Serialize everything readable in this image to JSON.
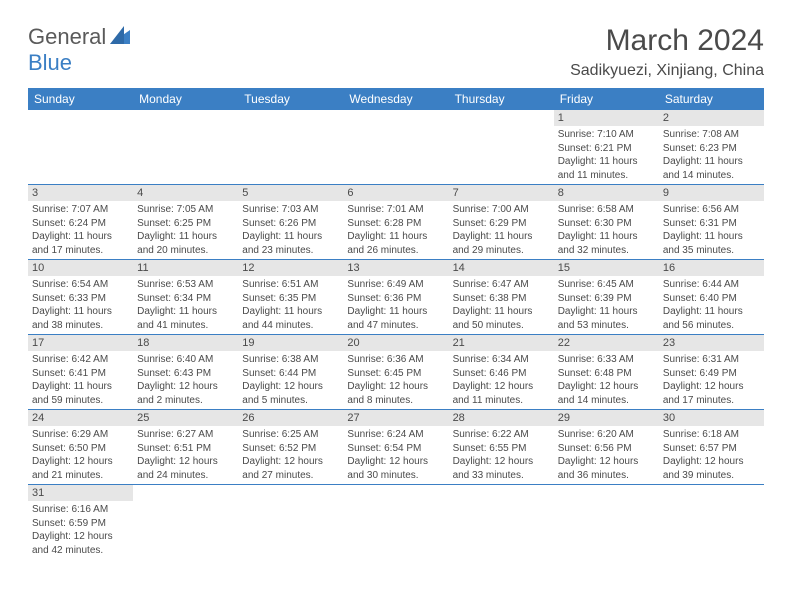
{
  "logo": {
    "text1": "General",
    "text2": "Blue"
  },
  "title": "March 2024",
  "location": "Sadikyuezi, Xinjiang, China",
  "colors": {
    "header_bg": "#3b7fc4",
    "daynum_bg": "#e6e6e6",
    "text": "#4a4a4a",
    "row_border": "#3b7fc4"
  },
  "font": {
    "title_size": 30,
    "location_size": 16,
    "header_size": 12,
    "body_size": 10
  },
  "weekdays": [
    "Sunday",
    "Monday",
    "Tuesday",
    "Wednesday",
    "Thursday",
    "Friday",
    "Saturday"
  ],
  "weeks": [
    [
      null,
      null,
      null,
      null,
      null,
      {
        "n": "1",
        "sr": "Sunrise: 7:10 AM",
        "ss": "Sunset: 6:21 PM",
        "d1": "Daylight: 11 hours",
        "d2": "and 11 minutes."
      },
      {
        "n": "2",
        "sr": "Sunrise: 7:08 AM",
        "ss": "Sunset: 6:23 PM",
        "d1": "Daylight: 11 hours",
        "d2": "and 14 minutes."
      }
    ],
    [
      {
        "n": "3",
        "sr": "Sunrise: 7:07 AM",
        "ss": "Sunset: 6:24 PM",
        "d1": "Daylight: 11 hours",
        "d2": "and 17 minutes."
      },
      {
        "n": "4",
        "sr": "Sunrise: 7:05 AM",
        "ss": "Sunset: 6:25 PM",
        "d1": "Daylight: 11 hours",
        "d2": "and 20 minutes."
      },
      {
        "n": "5",
        "sr": "Sunrise: 7:03 AM",
        "ss": "Sunset: 6:26 PM",
        "d1": "Daylight: 11 hours",
        "d2": "and 23 minutes."
      },
      {
        "n": "6",
        "sr": "Sunrise: 7:01 AM",
        "ss": "Sunset: 6:28 PM",
        "d1": "Daylight: 11 hours",
        "d2": "and 26 minutes."
      },
      {
        "n": "7",
        "sr": "Sunrise: 7:00 AM",
        "ss": "Sunset: 6:29 PM",
        "d1": "Daylight: 11 hours",
        "d2": "and 29 minutes."
      },
      {
        "n": "8",
        "sr": "Sunrise: 6:58 AM",
        "ss": "Sunset: 6:30 PM",
        "d1": "Daylight: 11 hours",
        "d2": "and 32 minutes."
      },
      {
        "n": "9",
        "sr": "Sunrise: 6:56 AM",
        "ss": "Sunset: 6:31 PM",
        "d1": "Daylight: 11 hours",
        "d2": "and 35 minutes."
      }
    ],
    [
      {
        "n": "10",
        "sr": "Sunrise: 6:54 AM",
        "ss": "Sunset: 6:33 PM",
        "d1": "Daylight: 11 hours",
        "d2": "and 38 minutes."
      },
      {
        "n": "11",
        "sr": "Sunrise: 6:53 AM",
        "ss": "Sunset: 6:34 PM",
        "d1": "Daylight: 11 hours",
        "d2": "and 41 minutes."
      },
      {
        "n": "12",
        "sr": "Sunrise: 6:51 AM",
        "ss": "Sunset: 6:35 PM",
        "d1": "Daylight: 11 hours",
        "d2": "and 44 minutes."
      },
      {
        "n": "13",
        "sr": "Sunrise: 6:49 AM",
        "ss": "Sunset: 6:36 PM",
        "d1": "Daylight: 11 hours",
        "d2": "and 47 minutes."
      },
      {
        "n": "14",
        "sr": "Sunrise: 6:47 AM",
        "ss": "Sunset: 6:38 PM",
        "d1": "Daylight: 11 hours",
        "d2": "and 50 minutes."
      },
      {
        "n": "15",
        "sr": "Sunrise: 6:45 AM",
        "ss": "Sunset: 6:39 PM",
        "d1": "Daylight: 11 hours",
        "d2": "and 53 minutes."
      },
      {
        "n": "16",
        "sr": "Sunrise: 6:44 AM",
        "ss": "Sunset: 6:40 PM",
        "d1": "Daylight: 11 hours",
        "d2": "and 56 minutes."
      }
    ],
    [
      {
        "n": "17",
        "sr": "Sunrise: 6:42 AM",
        "ss": "Sunset: 6:41 PM",
        "d1": "Daylight: 11 hours",
        "d2": "and 59 minutes."
      },
      {
        "n": "18",
        "sr": "Sunrise: 6:40 AM",
        "ss": "Sunset: 6:43 PM",
        "d1": "Daylight: 12 hours",
        "d2": "and 2 minutes."
      },
      {
        "n": "19",
        "sr": "Sunrise: 6:38 AM",
        "ss": "Sunset: 6:44 PM",
        "d1": "Daylight: 12 hours",
        "d2": "and 5 minutes."
      },
      {
        "n": "20",
        "sr": "Sunrise: 6:36 AM",
        "ss": "Sunset: 6:45 PM",
        "d1": "Daylight: 12 hours",
        "d2": "and 8 minutes."
      },
      {
        "n": "21",
        "sr": "Sunrise: 6:34 AM",
        "ss": "Sunset: 6:46 PM",
        "d1": "Daylight: 12 hours",
        "d2": "and 11 minutes."
      },
      {
        "n": "22",
        "sr": "Sunrise: 6:33 AM",
        "ss": "Sunset: 6:48 PM",
        "d1": "Daylight: 12 hours",
        "d2": "and 14 minutes."
      },
      {
        "n": "23",
        "sr": "Sunrise: 6:31 AM",
        "ss": "Sunset: 6:49 PM",
        "d1": "Daylight: 12 hours",
        "d2": "and 17 minutes."
      }
    ],
    [
      {
        "n": "24",
        "sr": "Sunrise: 6:29 AM",
        "ss": "Sunset: 6:50 PM",
        "d1": "Daylight: 12 hours",
        "d2": "and 21 minutes."
      },
      {
        "n": "25",
        "sr": "Sunrise: 6:27 AM",
        "ss": "Sunset: 6:51 PM",
        "d1": "Daylight: 12 hours",
        "d2": "and 24 minutes."
      },
      {
        "n": "26",
        "sr": "Sunrise: 6:25 AM",
        "ss": "Sunset: 6:52 PM",
        "d1": "Daylight: 12 hours",
        "d2": "and 27 minutes."
      },
      {
        "n": "27",
        "sr": "Sunrise: 6:24 AM",
        "ss": "Sunset: 6:54 PM",
        "d1": "Daylight: 12 hours",
        "d2": "and 30 minutes."
      },
      {
        "n": "28",
        "sr": "Sunrise: 6:22 AM",
        "ss": "Sunset: 6:55 PM",
        "d1": "Daylight: 12 hours",
        "d2": "and 33 minutes."
      },
      {
        "n": "29",
        "sr": "Sunrise: 6:20 AM",
        "ss": "Sunset: 6:56 PM",
        "d1": "Daylight: 12 hours",
        "d2": "and 36 minutes."
      },
      {
        "n": "30",
        "sr": "Sunrise: 6:18 AM",
        "ss": "Sunset: 6:57 PM",
        "d1": "Daylight: 12 hours",
        "d2": "and 39 minutes."
      }
    ],
    [
      {
        "n": "31",
        "sr": "Sunrise: 6:16 AM",
        "ss": "Sunset: 6:59 PM",
        "d1": "Daylight: 12 hours",
        "d2": "and 42 minutes."
      },
      null,
      null,
      null,
      null,
      null,
      null
    ]
  ]
}
